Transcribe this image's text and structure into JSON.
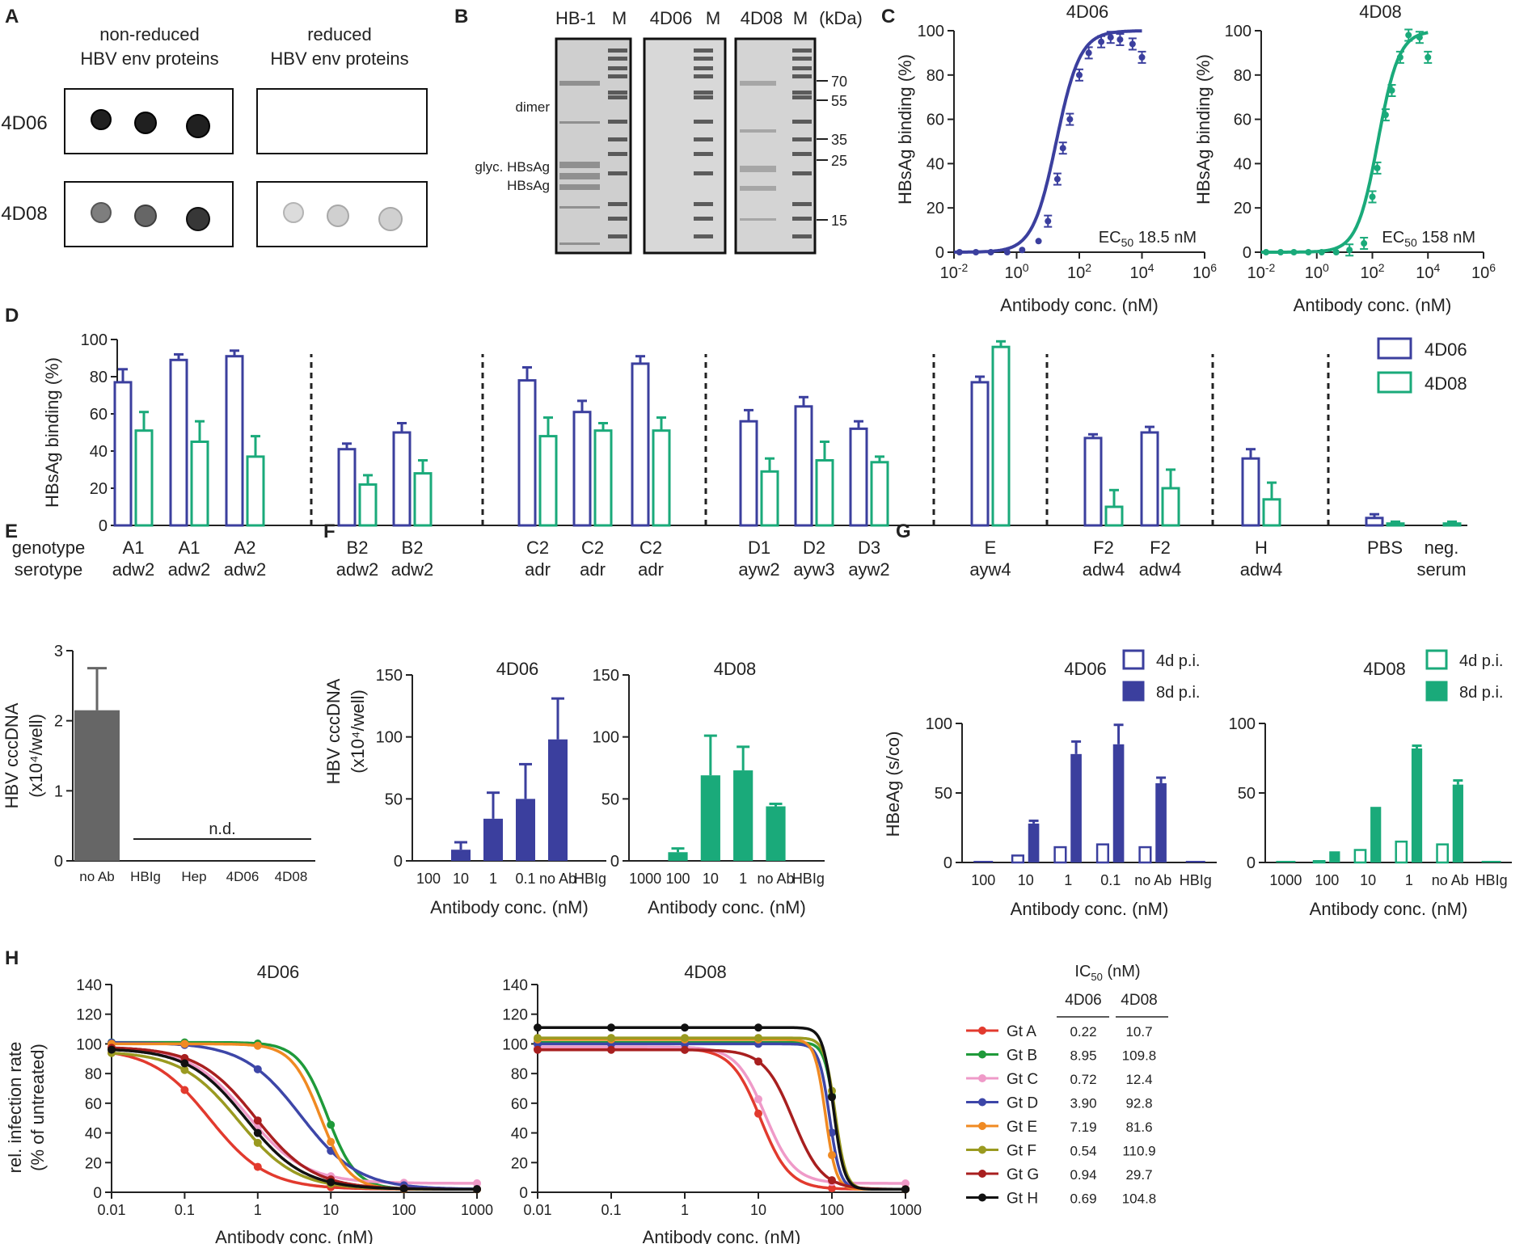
{
  "colors": {
    "c4D06": "#3b3f9e",
    "c4D08": "#1aaa7a",
    "grey": "#666666",
    "gt": [
      "#e23a2e",
      "#1f9a3a",
      "#ef9ac8",
      "#3d46a8",
      "#f08a22",
      "#9a9a20",
      "#a81f1f",
      "#111111"
    ]
  },
  "panel_letters": [
    "A",
    "B",
    "C",
    "D",
    "E",
    "F",
    "G",
    "H"
  ],
  "panelA": {
    "headers": [
      "non-reduced\nHBV env proteins",
      "reduced\nHBV env proteins"
    ],
    "rows": [
      "4D06",
      "4D08"
    ],
    "spot_intensity": {
      "4D06": [
        [
          0.95,
          0.95,
          0.95
        ],
        [
          0,
          0,
          0
        ]
      ],
      "4D08": [
        [
          0.55,
          0.65,
          0.85
        ],
        [
          0.15,
          0.2,
          0.2
        ]
      ]
    }
  },
  "panelB": {
    "lane_labels": [
      "HB-1",
      "M",
      "4D06",
      "M",
      "4D08",
      "M",
      "(kDa)"
    ],
    "band_labels": [
      "dimer",
      "glyc. HBsAg",
      "HBsAg"
    ],
    "markers_kDa": [
      "70",
      "55",
      "35",
      "25",
      "15"
    ]
  },
  "chart_data": [
    {
      "id": "C1",
      "type": "line",
      "title": "4D06",
      "xlabel": "Antibody conc. (nM)",
      "ylabel": "HBsAg binding (%)",
      "xscale": "log",
      "xlim": [
        0.01,
        1000000
      ],
      "ylim": [
        0,
        100
      ],
      "xticks": [
        "10^-2",
        "10^0",
        "10^2",
        "10^4",
        "10^6"
      ],
      "yticks": [
        0,
        20,
        40,
        60,
        80,
        100
      ],
      "annotation": "EC50 18.5 nM",
      "ec50": 18.5,
      "points": {
        "x": [
          0.015,
          0.05,
          0.15,
          0.5,
          1.5,
          5,
          10,
          20,
          30,
          50,
          100,
          200,
          500,
          1000,
          2000,
          5000,
          10000
        ],
        "y": [
          0,
          0,
          0,
          0,
          1,
          5,
          14,
          33,
          47,
          60,
          80,
          90,
          95,
          97,
          96,
          94,
          88
        ]
      }
    },
    {
      "id": "C2",
      "type": "line",
      "title": "4D08",
      "xlabel": "Antibody conc. (nM)",
      "ylabel": "HBsAg binding (%)",
      "xscale": "log",
      "xlim": [
        0.01,
        1000000
      ],
      "ylim": [
        0,
        100
      ],
      "xticks": [
        "10^-2",
        "10^0",
        "10^2",
        "10^4",
        "10^6"
      ],
      "yticks": [
        0,
        20,
        40,
        60,
        80,
        100
      ],
      "annotation": "EC50 158 nM",
      "ec50": 158,
      "points": {
        "x": [
          0.015,
          0.05,
          0.15,
          0.5,
          1.5,
          5,
          15,
          50,
          100,
          150,
          300,
          500,
          1000,
          2000,
          5000,
          10000
        ],
        "y": [
          0,
          0,
          0,
          0,
          0,
          0,
          1,
          4,
          25,
          38,
          62,
          73,
          88,
          98,
          97,
          88
        ]
      }
    },
    {
      "id": "D",
      "type": "bar",
      "ylabel": "HBsAg binding (%)",
      "ylim": [
        0,
        100
      ],
      "yticks": [
        0,
        20,
        40,
        60,
        80,
        100
      ],
      "row_labels": [
        "genotype",
        "serotype"
      ],
      "legend": [
        "4D06",
        "4D08"
      ],
      "groups": [
        {
          "genotype": "A1",
          "serotype": "adw2",
          "v4D06": 77,
          "e4D06": 7,
          "v4D08": 51,
          "e4D08": 10
        },
        {
          "genotype": "A1",
          "serotype": "adw2",
          "v4D06": 89,
          "e4D06": 3,
          "v4D08": 45,
          "e4D08": 11
        },
        {
          "genotype": "A2",
          "serotype": "adw2",
          "v4D06": 91,
          "e4D06": 3,
          "v4D08": 37,
          "e4D08": 11
        },
        {
          "sep": true
        },
        {
          "genotype": "B2",
          "serotype": "adw2",
          "v4D06": 41,
          "e4D06": 3,
          "v4D08": 22,
          "e4D08": 5
        },
        {
          "genotype": "B2",
          "serotype": "adw2",
          "v4D06": 50,
          "e4D06": 5,
          "v4D08": 28,
          "e4D08": 7
        },
        {
          "sep": true
        },
        {
          "genotype": "C2",
          "serotype": "adr",
          "v4D06": 78,
          "e4D06": 7,
          "v4D08": 48,
          "e4D08": 10
        },
        {
          "genotype": "C2",
          "serotype": "adr",
          "v4D06": 61,
          "e4D06": 6,
          "v4D08": 51,
          "e4D08": 4
        },
        {
          "genotype": "C2",
          "serotype": "adr",
          "v4D06": 87,
          "e4D06": 4,
          "v4D08": 51,
          "e4D08": 7
        },
        {
          "sep": true
        },
        {
          "genotype": "D1",
          "serotype": "ayw2",
          "v4D06": 56,
          "e4D06": 6,
          "v4D08": 29,
          "e4D08": 7
        },
        {
          "genotype": "D2",
          "serotype": "ayw3",
          "v4D06": 64,
          "e4D06": 5,
          "v4D08": 35,
          "e4D08": 10
        },
        {
          "genotype": "D3",
          "serotype": "ayw2",
          "v4D06": 52,
          "e4D06": 4,
          "v4D08": 34,
          "e4D08": 3
        },
        {
          "sep": true
        },
        {
          "genotype": "E",
          "serotype": "ayw4",
          "v4D06": 77,
          "e4D06": 3,
          "v4D08": 96,
          "e4D08": 3
        },
        {
          "sep": true
        },
        {
          "genotype": "F2",
          "serotype": "adw4",
          "v4D06": 47,
          "e4D06": 2,
          "v4D08": 10,
          "e4D08": 9
        },
        {
          "genotype": "F2",
          "serotype": "adw4",
          "v4D06": 50,
          "e4D06": 3,
          "v4D08": 20,
          "e4D08": 10
        },
        {
          "sep": true
        },
        {
          "genotype": "H",
          "serotype": "adw4",
          "v4D06": 36,
          "e4D06": 5,
          "v4D08": 14,
          "e4D08": 9
        },
        {
          "sep": true
        },
        {
          "genotype": "PBS",
          "serotype": "",
          "v4D06": 4,
          "e4D06": 2,
          "v4D08": 1,
          "e4D08": 1
        },
        {
          "genotype": "neg.",
          "serotype": "serum",
          "v4D06": 0,
          "e4D06": 0,
          "v4D08": 1,
          "e4D08": 1
        }
      ]
    },
    {
      "id": "E",
      "type": "bar",
      "ylabel": "HBV cccDNA\n(x10⁴/well)",
      "ylim": [
        0,
        3
      ],
      "yticks": [
        0,
        1,
        2,
        3
      ],
      "categories": [
        "no Ab",
        "HBIg",
        "Hep",
        "4D06",
        "4D08"
      ],
      "values": [
        2.15,
        0,
        0,
        0,
        0
      ],
      "errors": [
        0.6,
        0,
        0,
        0,
        0
      ],
      "annotation": "n.d."
    },
    {
      "id": "F1",
      "type": "bar",
      "title": "4D06",
      "xlabel": "Antibody conc. (nM)",
      "ylabel": "HBV cccDNA\n(x10⁴/well)",
      "ylim": [
        0,
        150
      ],
      "yticks": [
        0,
        50,
        100,
        150
      ],
      "categories": [
        "100",
        "10",
        "1",
        "0.1",
        "no Ab",
        "HBIg"
      ],
      "values": [
        0,
        9,
        34,
        50,
        98,
        0
      ],
      "errors": [
        0,
        6,
        21,
        28,
        33,
        0
      ]
    },
    {
      "id": "F2",
      "type": "bar",
      "title": "4D08",
      "xlabel": "Antibody conc. (nM)",
      "ylim": [
        0,
        150
      ],
      "yticks": [
        0,
        50,
        100,
        150
      ],
      "categories": [
        "1000",
        "100",
        "10",
        "1",
        "no Ab",
        "HBIg"
      ],
      "values": [
        0,
        7,
        69,
        73,
        44,
        0
      ],
      "errors": [
        0,
        3,
        32,
        19,
        2,
        0
      ]
    },
    {
      "id": "G1",
      "type": "bar",
      "title": "4D06",
      "xlabel": "Antibody conc. (nM)",
      "ylabel": "HBeAg (s/co)",
      "ylim": [
        0,
        100
      ],
      "yticks": [
        0,
        50,
        100
      ],
      "legend": [
        "4d p.i.",
        "8d p.i."
      ],
      "categories": [
        "100",
        "10",
        "1",
        "0.1",
        "no Ab",
        "HBIg"
      ],
      "series": [
        {
          "name": "4d p.i.",
          "values": [
            0,
            5,
            11,
            13,
            11,
            0
          ]
        },
        {
          "name": "8d p.i.",
          "values": [
            0,
            28,
            78,
            85,
            57,
            0
          ],
          "errors": [
            0,
            2,
            9,
            14,
            4,
            0
          ]
        }
      ]
    },
    {
      "id": "G2",
      "type": "bar",
      "title": "4D08",
      "xlabel": "Antibody conc. (nM)",
      "ylim": [
        0,
        100
      ],
      "yticks": [
        0,
        50,
        100
      ],
      "legend": [
        "4d p.i.",
        "8d p.i."
      ],
      "categories": [
        "1000",
        "100",
        "10",
        "1",
        "no Ab",
        "HBIg"
      ],
      "series": [
        {
          "name": "4d p.i.",
          "values": [
            0,
            1,
            9,
            15,
            13,
            0
          ]
        },
        {
          "name": "8d p.i.",
          "values": [
            0,
            8,
            40,
            82,
            56,
            0
          ],
          "errors": [
            0,
            0,
            0,
            2,
            3,
            0
          ]
        }
      ]
    },
    {
      "id": "H1",
      "type": "line",
      "title": "4D06",
      "xlabel": "Antibody conc. (nM)",
      "ylabel": "rel. infection rate\n(% of untreated)",
      "xscale": "log",
      "xlim": [
        0.01,
        1000
      ],
      "ylim": [
        0,
        140
      ],
      "xticks": [
        "0.01",
        "0.1",
        "1",
        "10",
        "100",
        "1000"
      ],
      "yticks": [
        0,
        20,
        40,
        60,
        80,
        100,
        120,
        140
      ],
      "series": [
        {
          "name": "Gt A",
          "ic50": 0.22,
          "top": 97,
          "bottom": 2
        },
        {
          "name": "Gt B",
          "ic50": 8.95,
          "top": 101,
          "bottom": 2
        },
        {
          "name": "Gt C",
          "ic50": 0.72,
          "top": 98,
          "bottom": 6
        },
        {
          "name": "Gt D",
          "ic50": 3.9,
          "top": 101,
          "bottom": 2
        },
        {
          "name": "Gt E",
          "ic50": 7.19,
          "top": 100,
          "bottom": 2
        },
        {
          "name": "Gt F",
          "ic50": 0.54,
          "top": 95,
          "bottom": 2
        },
        {
          "name": "Gt G",
          "ic50": 0.94,
          "top": 98,
          "bottom": 2
        },
        {
          "name": "Gt H",
          "ic50": 0.69,
          "top": 97,
          "bottom": 2
        }
      ]
    },
    {
      "id": "H2",
      "type": "line",
      "title": "4D08",
      "xlabel": "Antibody conc. (nM)",
      "xscale": "log",
      "xlim": [
        0.01,
        1000
      ],
      "ylim": [
        0,
        140
      ],
      "xticks": [
        "0.01",
        "0.1",
        "1",
        "10",
        "100",
        "1000"
      ],
      "yticks": [
        0,
        20,
        40,
        60,
        80,
        100,
        120,
        140
      ],
      "series": [
        {
          "name": "Gt A",
          "ic50": 10.7,
          "top": 97,
          "bottom": 2
        },
        {
          "name": "Gt B",
          "ic50": 109.8,
          "top": 101,
          "bottom": 2
        },
        {
          "name": "Gt C",
          "ic50": 12.4,
          "top": 98,
          "bottom": 6
        },
        {
          "name": "Gt D",
          "ic50": 92.8,
          "top": 100,
          "bottom": 2
        },
        {
          "name": "Gt E",
          "ic50": 81.6,
          "top": 103,
          "bottom": 2
        },
        {
          "name": "Gt F",
          "ic50": 110.9,
          "top": 104,
          "bottom": 2
        },
        {
          "name": "Gt G",
          "ic50": 29.7,
          "top": 96,
          "bottom": 2
        },
        {
          "name": "Gt H",
          "ic50": 104.8,
          "top": 111,
          "bottom": 2
        }
      ]
    }
  ],
  "ic50_table": {
    "title": "IC50 (nM)",
    "headers": [
      "4D06",
      "4D08"
    ],
    "rows": [
      {
        "label": "Gt A",
        "v4D06": "0.22",
        "v4D08": "10.7"
      },
      {
        "label": "Gt B",
        "v4D06": "8.95",
        "v4D08": "109.8"
      },
      {
        "label": "Gt C",
        "v4D06": "0.72",
        "v4D08": "12.4"
      },
      {
        "label": "Gt D",
        "v4D06": "3.90",
        "v4D08": "92.8"
      },
      {
        "label": "Gt E",
        "v4D06": "7.19",
        "v4D08": "81.6"
      },
      {
        "label": "Gt F",
        "v4D06": "0.54",
        "v4D08": "110.9"
      },
      {
        "label": "Gt G",
        "v4D06": "0.94",
        "v4D08": "29.7"
      },
      {
        "label": "Gt H",
        "v4D06": "0.69",
        "v4D08": "104.8"
      }
    ]
  }
}
